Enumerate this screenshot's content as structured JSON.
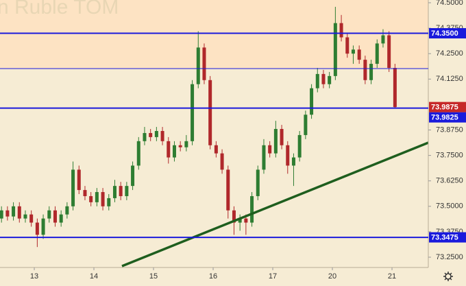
{
  "chart_data": {
    "type": "candlestick",
    "title": "n Ruble TOM",
    "x": [
      -0.55,
      -0.45,
      -0.35,
      -0.25,
      -0.15,
      -0.05,
      0.05,
      0.15,
      0.25,
      0.35,
      0.45,
      0.55,
      0.65,
      0.75,
      0.85,
      0.95,
      1.05,
      1.15,
      1.25,
      1.35,
      1.45,
      1.55,
      1.65,
      1.75,
      1.85,
      1.95,
      2.05,
      2.15,
      2.25,
      2.35,
      2.45,
      2.55,
      2.65,
      2.75,
      2.85,
      2.95,
      3.05,
      3.15,
      3.25,
      3.35,
      3.45,
      3.55,
      3.65,
      3.75,
      3.85,
      3.95,
      4.05,
      4.15,
      4.25,
      4.35,
      4.45,
      4.55,
      4.65,
      4.75,
      4.85,
      4.95,
      5.05,
      5.15,
      5.25,
      5.35,
      5.45,
      5.55,
      5.65,
      5.75,
      5.85,
      5.95,
      6.05
    ],
    "open": [
      73.44,
      73.48,
      73.45,
      73.5,
      73.44,
      73.46,
      73.42,
      73.36,
      73.44,
      73.48,
      73.42,
      73.46,
      73.5,
      73.68,
      73.58,
      73.55,
      73.52,
      73.57,
      73.5,
      73.54,
      73.6,
      73.55,
      73.6,
      73.7,
      73.82,
      73.86,
      73.84,
      73.87,
      73.82,
      73.74,
      73.8,
      73.79,
      73.82,
      74.1,
      74.28,
      74.12,
      73.8,
      73.76,
      73.68,
      73.48,
      73.42,
      73.44,
      73.42,
      73.55,
      73.68,
      73.8,
      73.76,
      73.88,
      73.8,
      73.7,
      73.74,
      73.85,
      73.95,
      74.08,
      74.15,
      74.1,
      74.14,
      74.4,
      74.33,
      74.25,
      74.27,
      74.22,
      74.12,
      74.2,
      74.3,
      74.34,
      74.18
    ],
    "high": [
      73.5,
      73.5,
      73.52,
      73.52,
      73.48,
      73.48,
      73.44,
      73.46,
      73.5,
      73.5,
      73.48,
      73.52,
      73.72,
      73.7,
      73.6,
      73.57,
      73.59,
      73.59,
      73.56,
      73.63,
      73.62,
      73.62,
      73.72,
      73.84,
      73.89,
      73.88,
      73.89,
      73.89,
      73.84,
      73.82,
      73.82,
      73.85,
      74.12,
      74.36,
      74.3,
      74.14,
      73.82,
      73.78,
      73.7,
      73.5,
      73.46,
      73.46,
      73.57,
      73.7,
      73.83,
      73.82,
      73.92,
      73.9,
      73.82,
      73.76,
      73.87,
      73.97,
      74.1,
      74.18,
      74.17,
      74.16,
      74.48,
      74.44,
      74.35,
      74.29,
      74.29,
      74.24,
      74.22,
      74.32,
      74.37,
      74.36,
      74.2
    ],
    "low": [
      73.42,
      73.43,
      73.43,
      73.42,
      73.42,
      73.4,
      73.3,
      73.34,
      73.42,
      73.4,
      73.4,
      73.44,
      73.48,
      73.56,
      73.53,
      73.5,
      73.5,
      73.48,
      73.48,
      73.52,
      73.53,
      73.53,
      73.58,
      73.68,
      73.8,
      73.82,
      73.82,
      73.8,
      73.71,
      73.72,
      73.77,
      73.77,
      73.8,
      74.08,
      74.1,
      73.78,
      73.74,
      73.66,
      73.44,
      73.36,
      73.38,
      73.36,
      73.4,
      73.53,
      73.66,
      73.74,
      73.74,
      73.78,
      73.66,
      73.6,
      73.72,
      73.83,
      73.93,
      74.06,
      74.08,
      74.08,
      74.12,
      74.31,
      74.23,
      74.2,
      74.2,
      74.1,
      74.1,
      74.18,
      74.28,
      74.16,
      73.98
    ],
    "close": [
      73.48,
      73.45,
      73.5,
      73.44,
      73.46,
      73.42,
      73.36,
      73.44,
      73.48,
      73.42,
      73.46,
      73.5,
      73.68,
      73.58,
      73.55,
      73.52,
      73.57,
      73.5,
      73.54,
      73.6,
      73.55,
      73.6,
      73.7,
      73.82,
      73.86,
      73.84,
      73.87,
      73.82,
      73.74,
      73.8,
      73.79,
      73.82,
      74.1,
      74.28,
      74.12,
      73.8,
      73.76,
      73.68,
      73.48,
      73.42,
      73.44,
      73.42,
      73.55,
      73.68,
      73.8,
      73.76,
      73.88,
      73.8,
      73.7,
      73.74,
      73.85,
      73.95,
      74.08,
      74.15,
      74.1,
      74.14,
      74.4,
      74.33,
      74.25,
      74.27,
      74.22,
      74.12,
      74.2,
      74.3,
      74.34,
      74.18,
      73.9875
    ],
    "up_color": "#2e7d32",
    "down_color": "#b0282b",
    "xlim": [
      -0.575,
      6.609
    ],
    "xticks": [
      {
        "value": 0,
        "label": "13"
      },
      {
        "value": 1,
        "label": "14"
      },
      {
        "value": 2,
        "label": "15"
      },
      {
        "value": 3,
        "label": "16"
      },
      {
        "value": 4,
        "label": "17"
      },
      {
        "value": 5,
        "label": "20"
      },
      {
        "value": 6,
        "label": "21"
      }
    ],
    "ylim": [
      73.1995,
      74.5135
    ],
    "yticks": [
      {
        "value": 74.5,
        "label": "74.5000"
      },
      {
        "value": 74.375,
        "label": "74.3750"
      },
      {
        "value": 74.25,
        "label": "74.2500"
      },
      {
        "value": 74.125,
        "label": "74.1250"
      },
      {
        "value": 73.875,
        "label": "73.8750"
      },
      {
        "value": 73.75,
        "label": "73.7500"
      },
      {
        "value": 73.625,
        "label": "73.6250"
      },
      {
        "value": 73.5,
        "label": "73.5000"
      },
      {
        "value": 73.375,
        "label": "73.3750"
      },
      {
        "value": 73.25,
        "label": "73.2500"
      }
    ],
    "levels": [
      {
        "value": 74.35,
        "label": "74.3500",
        "width": 2
      },
      {
        "value": 74.1765,
        "width": 1
      },
      {
        "value": 73.9825,
        "label": "73.9825",
        "width": 2
      },
      {
        "value": 73.3475,
        "label": "73.3475",
        "width": 2
      }
    ],
    "level_color": "#1a1adc",
    "last_price": {
      "value": 73.9875,
      "label": "73.9875",
      "color": "#c62828"
    },
    "trendline": {
      "x": [
        1.471,
        6.609
      ],
      "y": [
        73.2062,
        73.8127
      ],
      "color": "#1e5e1e"
    }
  }
}
